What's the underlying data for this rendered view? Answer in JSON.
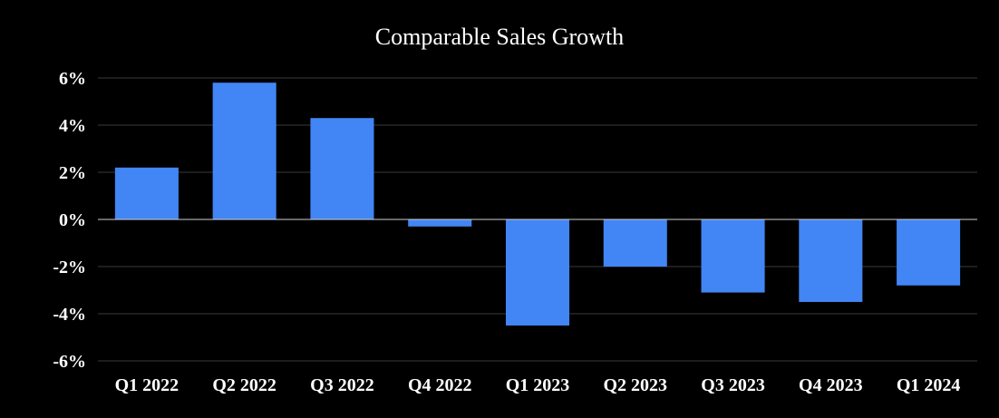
{
  "chart_data": {
    "type": "bar",
    "title": "Comparable Sales Growth",
    "xlabel": "",
    "ylabel": "",
    "categories": [
      "Q1 2022",
      "Q2 2022",
      "Q3 2022",
      "Q4 2022",
      "Q1 2023",
      "Q2 2023",
      "Q3 2023",
      "Q4 2023",
      "Q1 2024"
    ],
    "values": [
      2.2,
      5.8,
      4.3,
      -0.3,
      -4.5,
      -2.0,
      -3.1,
      -3.5,
      -2.8
    ],
    "ylim": [
      -6,
      6
    ],
    "yticks": [
      6,
      4,
      2,
      0,
      -2,
      -4,
      -6
    ],
    "ytick_labels": [
      "6%",
      "4%",
      "2%",
      "0%",
      "-2%",
      "-4%",
      "-6%"
    ],
    "grid": true,
    "legend": "none",
    "colors": {
      "bar": "#4285F4",
      "background": "#000000",
      "text": "#FFFFFF",
      "grid": "#3A3A3A"
    }
  }
}
